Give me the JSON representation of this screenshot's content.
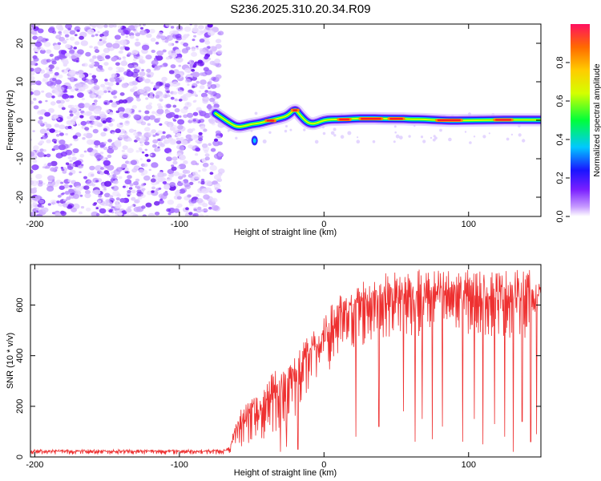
{
  "figure_title": "S236.2025.310.20.34.R09",
  "chart_data": [
    {
      "type": "heatmap",
      "name": "spectrogram",
      "xlabel": "Height of straight line (km)",
      "ylabel": "Frequency (Hz)",
      "xlim": [
        -203,
        150
      ],
      "ylim": [
        -25,
        25
      ],
      "xticks": [
        -200,
        -100,
        0,
        100
      ],
      "yticks": [
        -20,
        -10,
        0,
        10,
        20
      ],
      "noise_region": [
        -203,
        -73
      ],
      "signal_track": [
        [
          -75,
          1.8
        ],
        [
          -70,
          0.5
        ],
        [
          -65,
          -0.8
        ],
        [
          -60,
          -1.8
        ],
        [
          -55,
          -1.5
        ],
        [
          -50,
          -1.0
        ],
        [
          -45,
          -0.8
        ],
        [
          -40,
          -0.3
        ],
        [
          -35,
          0.2
        ],
        [
          -30,
          0.6
        ],
        [
          -25,
          1.2
        ],
        [
          -20,
          3.0
        ],
        [
          -17,
          1.5
        ],
        [
          -12,
          -0.5
        ],
        [
          -8,
          -1.0
        ],
        [
          -4,
          -0.6
        ],
        [
          0,
          0.0
        ],
        [
          5,
          0.2
        ],
        [
          10,
          0.2
        ],
        [
          20,
          0.4
        ],
        [
          30,
          0.5
        ],
        [
          40,
          0.4
        ],
        [
          50,
          0.4
        ],
        [
          60,
          0.3
        ],
        [
          70,
          0.2
        ],
        [
          80,
          0.0
        ],
        [
          90,
          -0.1
        ],
        [
          100,
          0.0
        ],
        [
          110,
          0.0
        ],
        [
          120,
          0.1
        ],
        [
          130,
          0.1
        ],
        [
          140,
          0.1
        ],
        [
          150,
          0.1
        ]
      ],
      "colorbar": {
        "label": "Normalized spectral amplitude",
        "range": [
          0,
          1
        ],
        "ticks": [
          0.0,
          0.2,
          0.4,
          0.6,
          0.8
        ],
        "colors": [
          "#ffffff",
          "#c79bff",
          "#7a1fff",
          "#1a14ff",
          "#00c8ff",
          "#00ff3a",
          "#d4ff00",
          "#ffcc00",
          "#ff6a00",
          "#ff1060"
        ]
      }
    },
    {
      "type": "line",
      "name": "snr",
      "xlabel": "Height of straight line (km)",
      "ylabel": "SNR (10 * v/v)",
      "xlim": [
        -203,
        150
      ],
      "ylim": [
        0,
        760
      ],
      "xticks": [
        -200,
        -100,
        0,
        100
      ],
      "yticks": [
        0,
        200,
        400,
        600
      ],
      "series_color": "#ee3030",
      "envelope_upper": [
        [
          -203,
          30
        ],
        [
          -70,
          30
        ],
        [
          -65,
          40
        ],
        [
          -60,
          170
        ],
        [
          -55,
          210
        ],
        [
          -50,
          280
        ],
        [
          -45,
          220
        ],
        [
          -40,
          320
        ],
        [
          -35,
          370
        ],
        [
          -30,
          330
        ],
        [
          -25,
          380
        ],
        [
          -20,
          420
        ],
        [
          -15,
          460
        ],
        [
          -12,
          510
        ],
        [
          -8,
          500
        ],
        [
          -5,
          520
        ],
        [
          0,
          550
        ],
        [
          5,
          600
        ],
        [
          10,
          650
        ],
        [
          15,
          640
        ],
        [
          20,
          680
        ],
        [
          25,
          700
        ],
        [
          30,
          710
        ],
        [
          35,
          715
        ],
        [
          40,
          725
        ],
        [
          50,
          735
        ],
        [
          60,
          740
        ],
        [
          80,
          740
        ],
        [
          100,
          740
        ],
        [
          120,
          740
        ],
        [
          150,
          740
        ]
      ],
      "envelope_lower": [
        [
          -203,
          10
        ],
        [
          -70,
          10
        ],
        [
          -65,
          15
        ],
        [
          -60,
          30
        ],
        [
          -55,
          40
        ],
        [
          -50,
          50
        ],
        [
          -45,
          60
        ],
        [
          -40,
          70
        ],
        [
          -35,
          90
        ],
        [
          -30,
          110
        ],
        [
          -25,
          130
        ],
        [
          -20,
          150
        ],
        [
          -15,
          200
        ],
        [
          -10,
          230
        ],
        [
          -5,
          270
        ],
        [
          0,
          320
        ],
        [
          10,
          380
        ],
        [
          20,
          420
        ],
        [
          30,
          440
        ],
        [
          40,
          460
        ],
        [
          60,
          470
        ],
        [
          80,
          480
        ],
        [
          100,
          480
        ],
        [
          120,
          470
        ],
        [
          150,
          470
        ]
      ],
      "dips": [
        [
          -30,
          20
        ],
        [
          -26,
          40
        ],
        [
          -18,
          30
        ],
        [
          22,
          80
        ],
        [
          38,
          120
        ],
        [
          55,
          180
        ],
        [
          63,
          60
        ],
        [
          68,
          150
        ],
        [
          75,
          70
        ],
        [
          82,
          120
        ],
        [
          96,
          60
        ],
        [
          104,
          150
        ],
        [
          110,
          50
        ],
        [
          118,
          130
        ],
        [
          125,
          80
        ],
        [
          131,
          20
        ],
        [
          137,
          140
        ],
        [
          143,
          60
        ],
        [
          147,
          90
        ]
      ]
    }
  ]
}
